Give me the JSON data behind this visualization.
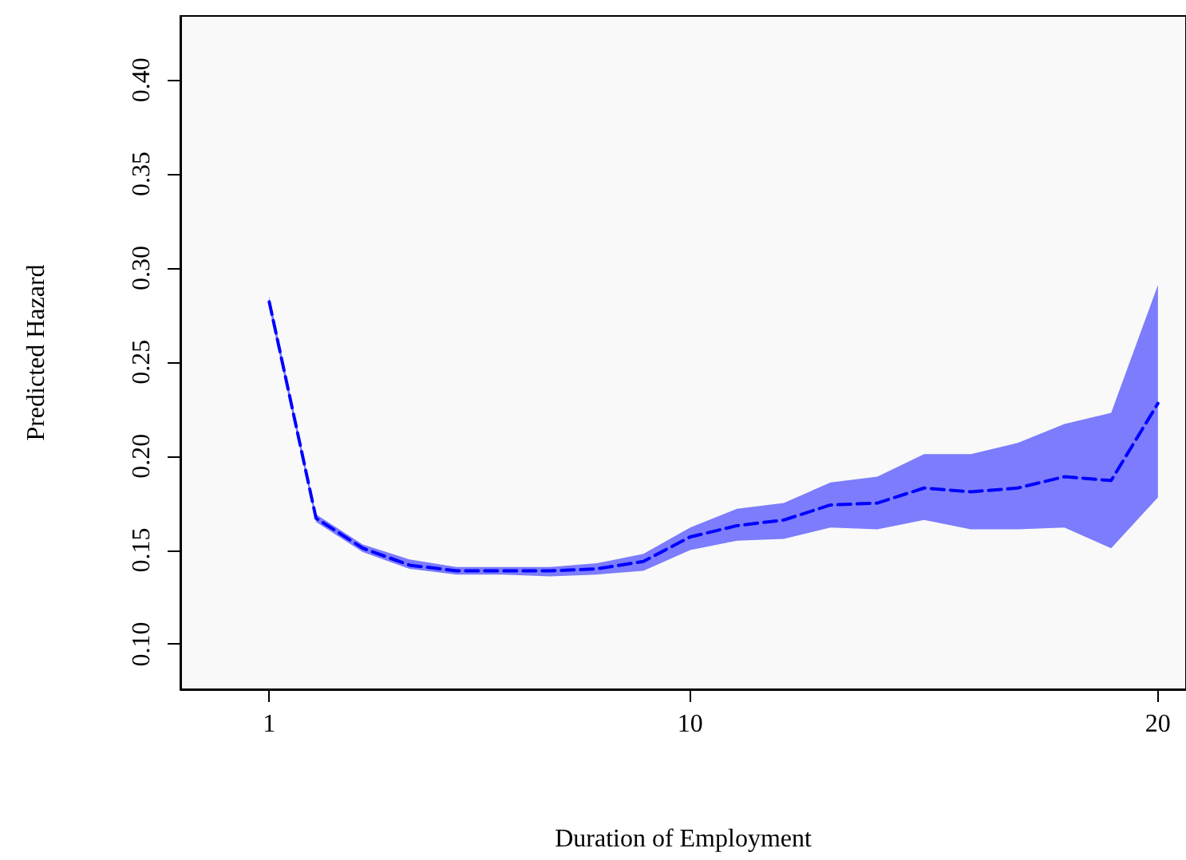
{
  "chart_data": {
    "type": "line",
    "xlabel": "Duration of Employment",
    "ylabel": "Predicted Hazard",
    "x": [
      1,
      2,
      3,
      4,
      5,
      6,
      7,
      8,
      9,
      10,
      11,
      12,
      13,
      14,
      15,
      16,
      17,
      18,
      19,
      20
    ],
    "series": [
      {
        "color": "#0000ff",
        "line_style": "dashed",
        "marker": "none",
        "values": [
          0.282,
          0.167,
          0.151,
          0.142,
          0.139,
          0.139,
          0.139,
          0.14,
          0.144,
          0.157,
          0.163,
          0.166,
          0.174,
          0.175,
          0.183,
          0.181,
          0.183,
          0.189,
          0.187,
          0.228
        ],
        "lower": [
          0.279,
          0.165,
          0.149,
          0.14,
          0.137,
          0.137,
          0.136,
          0.137,
          0.139,
          0.15,
          0.155,
          0.156,
          0.162,
          0.161,
          0.166,
          0.161,
          0.161,
          0.162,
          0.151,
          0.178
        ],
        "upper": [
          0.285,
          0.169,
          0.153,
          0.145,
          0.141,
          0.141,
          0.141,
          0.143,
          0.148,
          0.162,
          0.172,
          0.175,
          0.186,
          0.189,
          0.201,
          0.201,
          0.207,
          0.217,
          0.223,
          0.291
        ]
      }
    ],
    "xlim": [
      -0.9,
      20.6
    ],
    "xticks": [
      1,
      10,
      20
    ],
    "ylim": [
      0.076,
      0.434
    ],
    "yticks": [
      {
        "value": 0.1,
        "label": "0.10"
      },
      {
        "value": 0.15,
        "label": "0.15"
      },
      {
        "value": 0.2,
        "label": "0.20"
      },
      {
        "value": 0.25,
        "label": "0.25"
      },
      {
        "value": 0.3,
        "label": "0.30"
      },
      {
        "value": 0.35,
        "label": "0.35"
      },
      {
        "value": 0.4,
        "label": "0.40"
      }
    ],
    "grid": false
  }
}
